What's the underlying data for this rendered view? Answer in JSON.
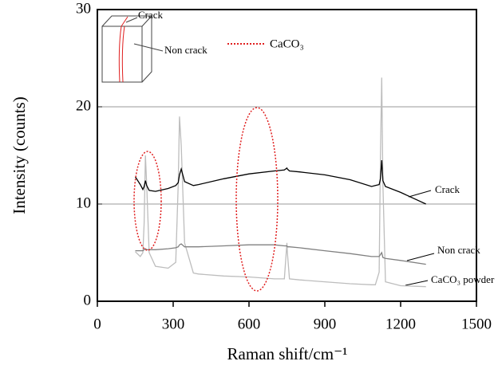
{
  "chart_data": {
    "type": "line",
    "ylabel": "Intensity (counts)",
    "xlabel": "Raman shift/cm⁻¹",
    "xlim": [
      0,
      1500
    ],
    "xticks": [
      0,
      300,
      600,
      900,
      1200,
      1500
    ],
    "ylim": [
      0,
      30
    ],
    "yticks": [
      0,
      10,
      20,
      30
    ],
    "grid": true,
    "highlight_label": "CaCO₃",
    "highlight_color": "#e02020",
    "inset_labels": [
      "Crack",
      "Non crack"
    ],
    "x": [
      150,
      170,
      180,
      185,
      190,
      195,
      205,
      230,
      280,
      310,
      320,
      325,
      332,
      345,
      380,
      400,
      500,
      600,
      700,
      740,
      750,
      752,
      760,
      800,
      900,
      1000,
      1085,
      1100,
      1115,
      1120,
      1125,
      1130,
      1140,
      1200,
      1300
    ],
    "series": [
      {
        "name": "Crack",
        "color": "#000000",
        "values": [
          12.8,
          12.0,
          11.5,
          11.8,
          12.4,
          11.9,
          11.4,
          11.3,
          11.6,
          11.9,
          12.2,
          13.0,
          13.6,
          12.3,
          11.9,
          12.0,
          12.6,
          13.1,
          13.4,
          13.5,
          13.7,
          13.6,
          13.4,
          13.3,
          13.0,
          12.5,
          11.8,
          11.9,
          12.0,
          12.6,
          14.5,
          12.4,
          11.8,
          11.2,
          10.0
        ]
      },
      {
        "name": "Non crack",
        "color": "#808080",
        "values": [
          5.2,
          5.2,
          5.2,
          5.3,
          5.4,
          5.3,
          5.3,
          5.3,
          5.4,
          5.5,
          5.6,
          5.8,
          5.9,
          5.6,
          5.6,
          5.6,
          5.7,
          5.8,
          5.8,
          5.7,
          5.7,
          5.6,
          5.6,
          5.5,
          5.2,
          4.9,
          4.6,
          4.6,
          4.6,
          4.8,
          5.0,
          4.5,
          4.4,
          4.2,
          3.8
        ]
      },
      {
        "name": "CaCO₃ powder",
        "color": "#bdbdbd",
        "values": [
          5.1,
          4.6,
          5.0,
          8,
          15,
          12,
          5,
          3.6,
          3.4,
          4.0,
          12,
          19,
          16,
          6,
          2.9,
          2.8,
          2.6,
          2.5,
          2.3,
          2.3,
          6,
          5,
          2.3,
          2.2,
          2.0,
          1.8,
          1.7,
          1.7,
          3,
          15,
          23,
          12,
          2,
          1.6,
          1.5
        ]
      }
    ]
  }
}
